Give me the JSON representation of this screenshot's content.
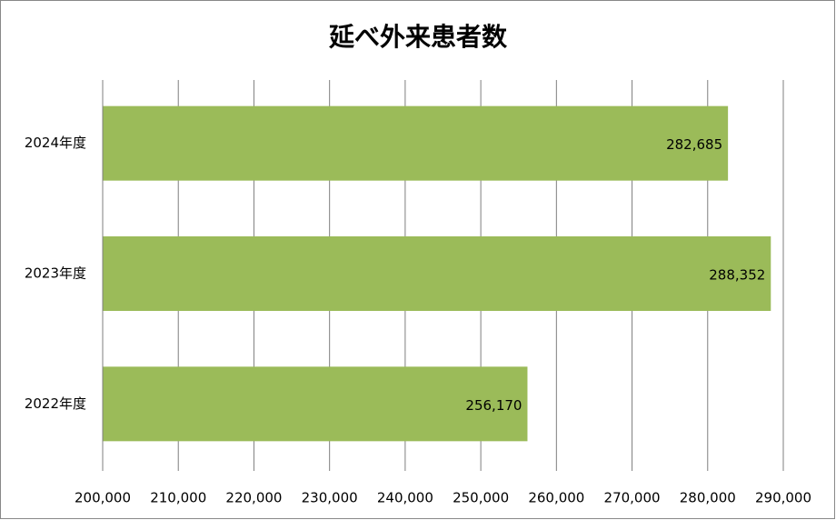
{
  "chart_data": {
    "type": "barh",
    "title": "延べ外来患者数",
    "categories": [
      "2024年度",
      "2023年度",
      "2022年度"
    ],
    "values": [
      282685,
      288352,
      256170
    ],
    "value_labels": [
      "282,685",
      "288,352",
      "256,170"
    ],
    "color": "#9bbb59",
    "xlim": [
      200000,
      290000
    ],
    "xticks": [
      {
        "value": 200000,
        "label": "200,000"
      },
      {
        "value": 210000,
        "label": "210,000"
      },
      {
        "value": 220000,
        "label": "220,000"
      },
      {
        "value": 230000,
        "label": "230,000"
      },
      {
        "value": 240000,
        "label": "240,000"
      },
      {
        "value": 250000,
        "label": "250,000"
      },
      {
        "value": 260000,
        "label": "260,000"
      },
      {
        "value": 270000,
        "label": "270,000"
      },
      {
        "value": 280000,
        "label": "280,000"
      },
      {
        "value": 290000,
        "label": "290,000"
      }
    ],
    "grid": true
  }
}
